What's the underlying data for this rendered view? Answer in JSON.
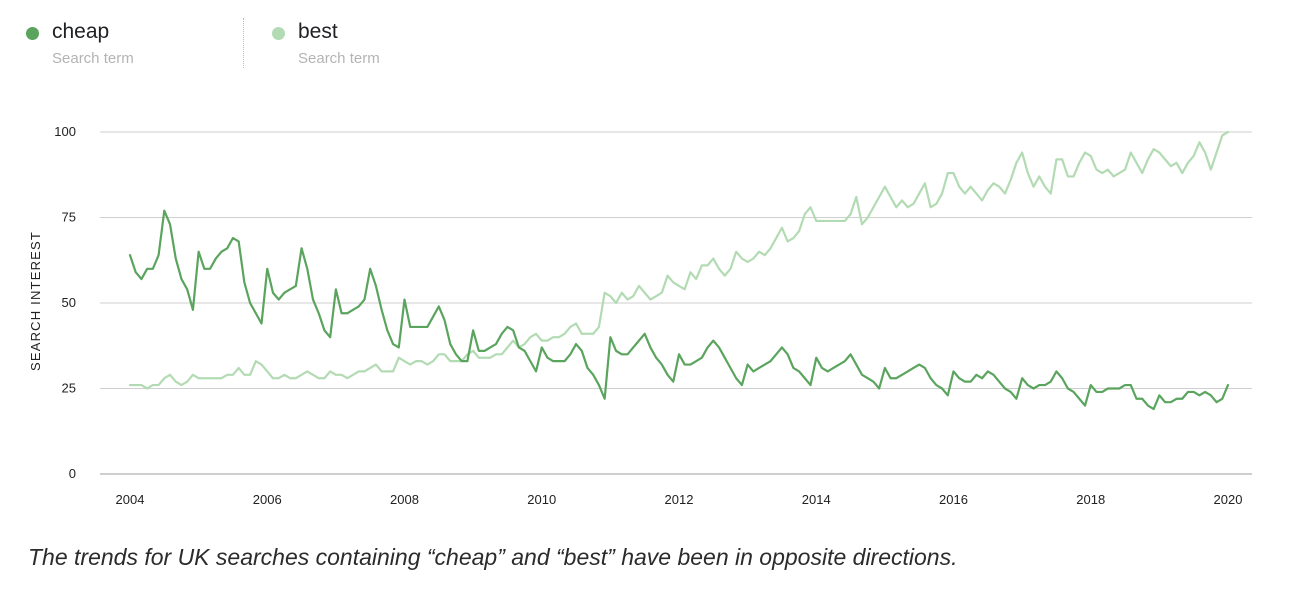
{
  "legend": {
    "items": [
      {
        "term": "cheap",
        "subtitle": "Search term",
        "color": "#5aa45e"
      },
      {
        "term": "best",
        "subtitle": "Search term",
        "color": "#b3dbb3"
      }
    ]
  },
  "caption": "The trends for UK searches containing “cheap” and “best” have been in opposite directions.",
  "chart_data": {
    "type": "line",
    "title": "",
    "xlabel": "",
    "ylabel": "SEARCH INTEREST",
    "xlim": [
      2004,
      2020
    ],
    "ylim": [
      0,
      100
    ],
    "yticks": [
      0,
      25,
      50,
      75,
      100
    ],
    "xticks": [
      2004,
      2006,
      2008,
      2010,
      2012,
      2014,
      2016,
      2018,
      2020
    ],
    "grid": true,
    "series": [
      {
        "name": "cheap",
        "color": "#5aa45e",
        "x_start": 2004,
        "x_step_months": 1,
        "values": [
          64,
          59,
          57,
          60,
          60,
          64,
          77,
          73,
          63,
          57,
          54,
          48,
          65,
          60,
          60,
          63,
          65,
          66,
          69,
          68,
          56,
          50,
          47,
          44,
          60,
          53,
          51,
          53,
          54,
          55,
          66,
          60,
          51,
          47,
          42,
          40,
          54,
          47,
          47,
          48,
          49,
          51,
          60,
          55,
          48,
          42,
          38,
          37,
          51,
          43,
          43,
          43,
          43,
          46,
          49,
          45,
          38,
          35,
          33,
          33,
          42,
          36,
          36,
          37,
          38,
          41,
          43,
          42,
          37,
          36,
          33,
          30,
          37,
          34,
          33,
          33,
          33,
          35,
          38,
          36,
          31,
          29,
          26,
          22,
          40,
          36,
          35,
          35,
          37,
          39,
          41,
          37,
          34,
          32,
          29,
          27,
          35,
          32,
          32,
          33,
          34,
          37,
          39,
          37,
          34,
          31,
          28,
          26,
          32,
          30,
          31,
          32,
          33,
          35,
          37,
          35,
          31,
          30,
          28,
          26,
          34,
          31,
          30,
          31,
          32,
          33,
          35,
          32,
          29,
          28,
          27,
          25,
          31,
          28,
          28,
          29,
          30,
          31,
          32,
          31,
          28,
          26,
          25,
          23,
          30,
          28,
          27,
          27,
          29,
          28,
          30,
          29,
          27,
          25,
          24,
          22,
          28,
          26,
          25,
          26,
          26,
          27,
          30,
          28,
          25,
          24,
          22,
          20,
          26,
          24,
          24,
          25,
          25,
          25,
          26,
          26,
          22,
          22,
          20,
          19,
          23,
          21,
          21,
          22,
          22,
          24,
          24,
          23,
          24,
          23,
          21,
          22,
          26
        ]
      },
      {
        "name": "best",
        "color": "#b3dbb3",
        "x_start": 2004,
        "x_step_months": 1,
        "values": [
          26,
          26,
          26,
          25,
          26,
          26,
          28,
          29,
          27,
          26,
          27,
          29,
          28,
          28,
          28,
          28,
          28,
          29,
          29,
          31,
          29,
          29,
          33,
          32,
          30,
          28,
          28,
          29,
          28,
          28,
          29,
          30,
          29,
          28,
          28,
          30,
          29,
          29,
          28,
          29,
          30,
          30,
          31,
          32,
          30,
          30,
          30,
          34,
          33,
          32,
          33,
          33,
          32,
          33,
          35,
          35,
          33,
          33,
          33,
          35,
          36,
          34,
          34,
          34,
          35,
          35,
          37,
          39,
          37,
          38,
          40,
          41,
          39,
          39,
          40,
          40,
          41,
          43,
          44,
          41,
          41,
          41,
          43,
          53,
          52,
          50,
          53,
          51,
          52,
          55,
          53,
          51,
          52,
          53,
          58,
          56,
          55,
          54,
          59,
          57,
          61,
          61,
          63,
          60,
          58,
          60,
          65,
          63,
          62,
          63,
          65,
          64,
          66,
          69,
          72,
          68,
          69,
          71,
          76,
          78,
          74,
          74,
          74,
          74,
          74,
          74,
          76,
          81,
          73,
          75,
          78,
          81,
          84,
          81,
          78,
          80,
          78,
          79,
          82,
          85,
          78,
          79,
          82,
          88,
          88,
          84,
          82,
          84,
          82,
          80,
          83,
          85,
          84,
          82,
          86,
          91,
          94,
          88,
          84,
          87,
          84,
          82,
          92,
          92,
          87,
          87,
          91,
          94,
          93,
          89,
          88,
          89,
          87,
          88,
          89,
          94,
          91,
          88,
          92,
          95,
          94,
          92,
          90,
          91,
          88,
          91,
          93,
          97,
          94,
          89,
          94,
          99,
          100
        ]
      }
    ]
  }
}
